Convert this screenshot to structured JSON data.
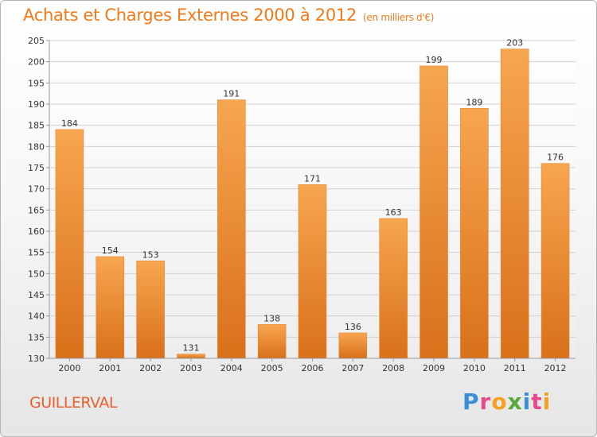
{
  "header": {
    "title": "Achats et Charges Externes 2000 à 2012",
    "unit": "(en milliers d'€)"
  },
  "footer": {
    "city": "GUILLERVAL",
    "brand": "Proxiti",
    "brand_colors": [
      "#3a8fd6",
      "#e64a8a",
      "#f4a020",
      "#5aa83c",
      "#3a8fd6",
      "#e64a8a",
      "#f4a020"
    ]
  },
  "colors": {
    "title": "#f07a1a",
    "bar_top": "#f7a64f",
    "bar_bottom": "#d9701a",
    "grid": "#d0d0d0",
    "axis_text": "#333333"
  },
  "chart_data": {
    "type": "bar",
    "categories": [
      "2000",
      "2001",
      "2002",
      "2003",
      "2004",
      "2005",
      "2006",
      "2007",
      "2008",
      "2009",
      "2010",
      "2011",
      "2012"
    ],
    "values": [
      184,
      154,
      153,
      131,
      191,
      138,
      171,
      136,
      163,
      199,
      189,
      203,
      176
    ],
    "data_labels": [
      "184",
      "154",
      "153",
      "131",
      "191",
      "138",
      "171",
      "136",
      "163",
      "199",
      "189",
      "203",
      "176"
    ],
    "ylim": [
      130,
      205
    ],
    "yticks": [
      130,
      135,
      140,
      145,
      150,
      155,
      160,
      165,
      170,
      175,
      180,
      185,
      190,
      195,
      200,
      205
    ],
    "grid": true,
    "title": "Achats et Charges Externes 2000 à 2012",
    "xlabel": "",
    "ylabel": ""
  }
}
